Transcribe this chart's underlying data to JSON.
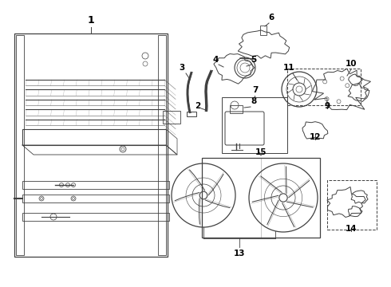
{
  "bg_color": "#ffffff",
  "line_color": "#404040",
  "label_color": "#000000",
  "fig_w": 4.9,
  "fig_h": 3.6,
  "dpi": 100
}
